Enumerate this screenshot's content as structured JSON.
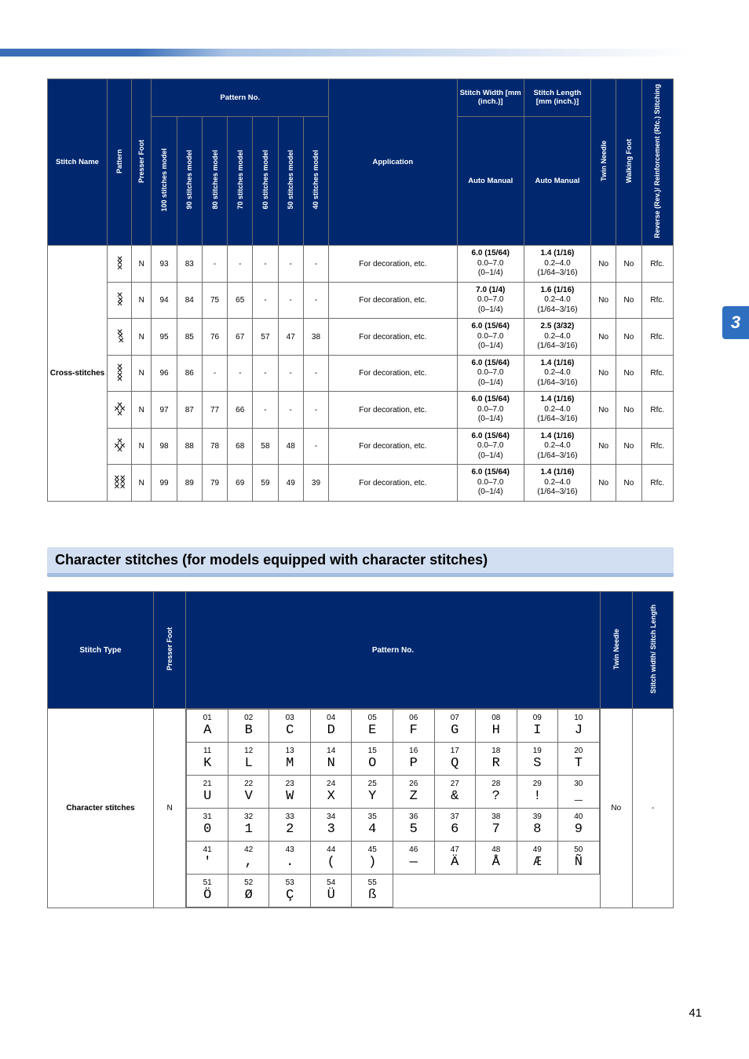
{
  "pageNumber": "41",
  "sideTab": "3",
  "table1": {
    "stitchName": "Cross-stitches",
    "headers": {
      "stitchName": "Stitch Name",
      "pattern": "Pattern",
      "presserFoot": "Presser Foot",
      "patternNoGroup": "Pattern No.",
      "modelCols": [
        "100 stitches model",
        "90 stitches model",
        "80 stitches model",
        "70 stitches model",
        "60 stitches model",
        "50 stitches model",
        "40 stitches model"
      ],
      "application": "Application",
      "stitchWidth": "Stitch Width [mm (inch.)]",
      "stitchLength": "Stitch Length [mm (inch.)]",
      "autoManual": "Auto Manual",
      "twinNeedle": "Twin Needle",
      "walkingFoot": "Walking Foot",
      "reverse": "Reverse (Rev.)/ Reinforcement (Rfc.) Stitching"
    },
    "rows": [
      {
        "patternGlyph": "✕\n✕\n✕",
        "presser": "N",
        "models": [
          "93",
          "83",
          "-",
          "-",
          "-",
          "-",
          "-"
        ],
        "app": "For decoration, etc.",
        "widthBold": "6.0 (15/64)",
        "widthMan": "0.0–7.0",
        "widthIn": "(0–1/4)",
        "lenBold": "1.4 (1/16)",
        "lenMan": "0.2–4.0",
        "lenIn": "(1/64–3/16)",
        "twin": "No",
        "walk": "No",
        "rev": "Rfc."
      },
      {
        "patternGlyph": "✕\n ✕\n✕",
        "presser": "N",
        "models": [
          "94",
          "84",
          "75",
          "65",
          "-",
          "-",
          "-"
        ],
        "app": "For decoration, etc.",
        "widthBold": "7.0 (1/4)",
        "widthMan": "0.0–7.0",
        "widthIn": "(0–1/4)",
        "lenBold": "1.6 (1/16)",
        "lenMan": "0.2–4.0",
        "lenIn": "(1/64–3/16)",
        "twin": "No",
        "walk": "No",
        "rev": "Rfc."
      },
      {
        "patternGlyph": "✕\n ✕\n  ✕",
        "presser": "N",
        "models": [
          "95",
          "85",
          "76",
          "67",
          "57",
          "47",
          "38"
        ],
        "app": "For decoration, etc.",
        "widthBold": "6.0 (15/64)",
        "widthMan": "0.0–7.0",
        "widthIn": "(0–1/4)",
        "lenBold": "2.5 (3/32)",
        "lenMan": "0.2–4.0",
        "lenIn": "(1/64–3/16)",
        "twin": "No",
        "walk": "No",
        "rev": "Rfc."
      },
      {
        "patternGlyph": "✕\n✕\n✕\n✕",
        "presser": "N",
        "models": [
          "96",
          "86",
          "-",
          "-",
          "-",
          "-",
          "-"
        ],
        "app": "For decoration, etc.",
        "widthBold": "6.0 (15/64)",
        "widthMan": "0.0–7.0",
        "widthIn": "(0–1/4)",
        "lenBold": "1.4 (1/16)",
        "lenMan": "0.2–4.0",
        "lenIn": "(1/64–3/16)",
        "twin": "No",
        "walk": "No",
        "rev": "Rfc."
      },
      {
        "patternGlyph": "✕\n✕✕\n✕",
        "presser": "N",
        "models": [
          "97",
          "87",
          "77",
          "66",
          "-",
          "-",
          "-"
        ],
        "app": "For decoration, etc.",
        "widthBold": "6.0 (15/64)",
        "widthMan": "0.0–7.0",
        "widthIn": "(0–1/4)",
        "lenBold": "1.4 (1/16)",
        "lenMan": "0.2–4.0",
        "lenIn": "(1/64–3/16)",
        "twin": "No",
        "walk": "No",
        "rev": "Rfc."
      },
      {
        "patternGlyph": "✕\n✕✕\n✕",
        "presser": "N",
        "models": [
          "98",
          "88",
          "78",
          "68",
          "58",
          "48",
          "-"
        ],
        "app": "For decoration, etc.",
        "widthBold": "6.0 (15/64)",
        "widthMan": "0.0–7.0",
        "widthIn": "(0–1/4)",
        "lenBold": "1.4 (1/16)",
        "lenMan": "0.2–4.0",
        "lenIn": "(1/64–3/16)",
        "twin": "No",
        "walk": "No",
        "rev": "Rfc."
      },
      {
        "patternGlyph": "✕✕\n✕✕\n✕✕",
        "presser": "N",
        "models": [
          "99",
          "89",
          "79",
          "69",
          "59",
          "49",
          "39"
        ],
        "app": "For decoration, etc.",
        "widthBold": "6.0 (15/64)",
        "widthMan": "0.0–7.0",
        "widthIn": "(0–1/4)",
        "lenBold": "1.4 (1/16)",
        "lenMan": "0.2–4.0",
        "lenIn": "(1/64–3/16)",
        "twin": "No",
        "walk": "No",
        "rev": "Rfc."
      }
    ]
  },
  "sectionHeading": "Character stitches (for models equipped with character stitches)",
  "table2": {
    "headers": {
      "stitchType": "Stitch Type",
      "presserFoot": "Presser Foot",
      "patternNo": "Pattern No.",
      "twinNeedle": "Twin Needle",
      "widthLen": "Stitch width/ Stitch Length"
    },
    "stitchType": "Character stitches",
    "presser": "N",
    "twin": "No",
    "widthLen": "-",
    "chars": [
      {
        "n": "01",
        "g": "A"
      },
      {
        "n": "02",
        "g": "B"
      },
      {
        "n": "03",
        "g": "C"
      },
      {
        "n": "04",
        "g": "D"
      },
      {
        "n": "05",
        "g": "E"
      },
      {
        "n": "06",
        "g": "F"
      },
      {
        "n": "07",
        "g": "G"
      },
      {
        "n": "08",
        "g": "H"
      },
      {
        "n": "09",
        "g": "I"
      },
      {
        "n": "10",
        "g": "J"
      },
      {
        "n": "11",
        "g": "K"
      },
      {
        "n": "12",
        "g": "L"
      },
      {
        "n": "13",
        "g": "M"
      },
      {
        "n": "14",
        "g": "N"
      },
      {
        "n": "15",
        "g": "O"
      },
      {
        "n": "16",
        "g": "P"
      },
      {
        "n": "17",
        "g": "Q"
      },
      {
        "n": "18",
        "g": "R"
      },
      {
        "n": "19",
        "g": "S"
      },
      {
        "n": "20",
        "g": "T"
      },
      {
        "n": "21",
        "g": "U"
      },
      {
        "n": "22",
        "g": "V"
      },
      {
        "n": "23",
        "g": "W"
      },
      {
        "n": "24",
        "g": "X"
      },
      {
        "n": "25",
        "g": "Y"
      },
      {
        "n": "26",
        "g": "Z"
      },
      {
        "n": "27",
        "g": "&"
      },
      {
        "n": "28",
        "g": "?"
      },
      {
        "n": "29",
        "g": "!"
      },
      {
        "n": "30",
        "g": "_"
      },
      {
        "n": "31",
        "g": "0"
      },
      {
        "n": "32",
        "g": "1"
      },
      {
        "n": "33",
        "g": "2"
      },
      {
        "n": "34",
        "g": "3"
      },
      {
        "n": "35",
        "g": "4"
      },
      {
        "n": "36",
        "g": "5"
      },
      {
        "n": "37",
        "g": "6"
      },
      {
        "n": "38",
        "g": "7"
      },
      {
        "n": "39",
        "g": "8"
      },
      {
        "n": "40",
        "g": "9"
      },
      {
        "n": "41",
        "g": "'"
      },
      {
        "n": "42",
        "g": ","
      },
      {
        "n": "43",
        "g": "."
      },
      {
        "n": "44",
        "g": "("
      },
      {
        "n": "45",
        "g": ")"
      },
      {
        "n": "46",
        "g": "—"
      },
      {
        "n": "47",
        "g": "Ä"
      },
      {
        "n": "48",
        "g": "Å"
      },
      {
        "n": "49",
        "g": "Æ"
      },
      {
        "n": "50",
        "g": "Ñ"
      },
      {
        "n": "51",
        "g": "Ö"
      },
      {
        "n": "52",
        "g": "Ø"
      },
      {
        "n": "53",
        "g": "Ç"
      },
      {
        "n": "54",
        "g": "Ü"
      },
      {
        "n": "55",
        "g": "ß"
      }
    ]
  }
}
